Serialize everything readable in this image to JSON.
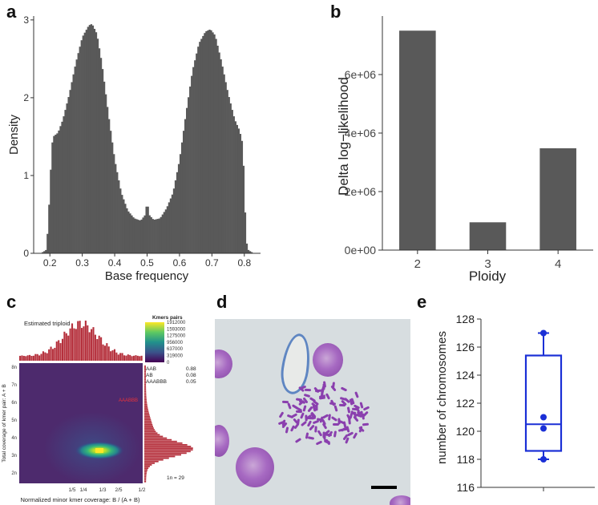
{
  "panels": {
    "a": "a",
    "b": "b",
    "c": "c",
    "d": "d",
    "e": "e"
  },
  "colors": {
    "bar": "#595959",
    "axis": "#333333",
    "hist_red": "#b5303c",
    "box_blue": "#1a2fd6"
  },
  "chart_data": [
    {
      "id": "a",
      "type": "bar",
      "title": "",
      "xlabel": "Base frequency",
      "ylabel": "Density",
      "xlim": [
        0.15,
        0.85
      ],
      "ylim": [
        0,
        3.05
      ],
      "xticks": [
        0.2,
        0.3,
        0.4,
        0.5,
        0.6,
        0.7,
        0.8
      ],
      "xtick_labels": [
        "0.2",
        "0.3",
        "0.4",
        "0.5",
        "0.6",
        "0.7",
        "0.8"
      ],
      "yticks": [
        0,
        1,
        2,
        3
      ],
      "ytick_labels": [
        "0",
        "1",
        "2",
        "3"
      ],
      "binwidth": 0.005,
      "shape_keypoints": [
        [
          0.17,
          0.0
        ],
        [
          0.18,
          0.02
        ],
        [
          0.19,
          0.05
        ],
        [
          0.195,
          0.45
        ],
        [
          0.2,
          0.8
        ],
        [
          0.205,
          1.35
        ],
        [
          0.21,
          1.5
        ],
        [
          0.225,
          1.55
        ],
        [
          0.24,
          1.72
        ],
        [
          0.26,
          2.05
        ],
        [
          0.28,
          2.45
        ],
        [
          0.3,
          2.78
        ],
        [
          0.32,
          2.93
        ],
        [
          0.33,
          2.95
        ],
        [
          0.345,
          2.82
        ],
        [
          0.36,
          2.45
        ],
        [
          0.38,
          1.8
        ],
        [
          0.4,
          1.2
        ],
        [
          0.42,
          0.78
        ],
        [
          0.44,
          0.55
        ],
        [
          0.46,
          0.45
        ],
        [
          0.48,
          0.42
        ],
        [
          0.495,
          0.5
        ],
        [
          0.5,
          0.7
        ],
        [
          0.505,
          0.5
        ],
        [
          0.52,
          0.43
        ],
        [
          0.54,
          0.45
        ],
        [
          0.56,
          0.58
        ],
        [
          0.58,
          0.78
        ],
        [
          0.6,
          1.2
        ],
        [
          0.62,
          1.8
        ],
        [
          0.64,
          2.35
        ],
        [
          0.66,
          2.7
        ],
        [
          0.68,
          2.85
        ],
        [
          0.695,
          2.88
        ],
        [
          0.71,
          2.8
        ],
        [
          0.73,
          2.45
        ],
        [
          0.75,
          2.05
        ],
        [
          0.77,
          1.72
        ],
        [
          0.785,
          1.58
        ],
        [
          0.795,
          1.4
        ],
        [
          0.8,
          0.85
        ],
        [
          0.805,
          0.2
        ],
        [
          0.81,
          0.05
        ],
        [
          0.82,
          0.02
        ],
        [
          0.83,
          0.0
        ]
      ]
    },
    {
      "id": "b",
      "type": "bar",
      "title": "",
      "xlabel": "Ploidy",
      "ylabel": "Delta log−likelihood",
      "categories": [
        "2",
        "3",
        "4"
      ],
      "values": [
        7500000,
        950000,
        3480000
      ],
      "ylim": [
        0,
        8000000
      ],
      "yticks": [
        0,
        2000000,
        4000000,
        6000000
      ],
      "ytick_labels": [
        "0e+00",
        "2e+06",
        "4e+06",
        "6e+06"
      ]
    },
    {
      "id": "c",
      "type": "heatmap",
      "title": "Estimated triploid",
      "xlabel": "Normalized minor kmer coverage: B / (A + B)",
      "ylabel": "Total coverage of kmer pair: A + B",
      "xtick_labels": [
        "1/5",
        "1/4",
        "1/3",
        "2/5",
        "1/2"
      ],
      "ytick_labels": [
        "2n",
        "3n",
        "4n",
        "5n",
        "6n",
        "7n",
        "8n"
      ],
      "annotation": "AAABBB",
      "legend": {
        "title": "Kmers pairs",
        "values": [
          "1912000",
          "1593000",
          "1275000",
          "956000",
          "637000",
          "319000",
          "0"
        ]
      },
      "proportions": [
        {
          "label": "AAB",
          "value": "0.88"
        },
        {
          "label": "AB",
          "value": "0.08"
        },
        {
          "label": "AAABBB",
          "value": "0.05"
        }
      ],
      "footnote": "1n = 29"
    },
    {
      "id": "e",
      "type": "box",
      "ylabel": "number of chromosomes",
      "ylim": [
        116,
        128
      ],
      "yticks": [
        116,
        118,
        120,
        122,
        124,
        126,
        128
      ],
      "ytick_labels": [
        "116",
        "118",
        "120",
        "122",
        "124",
        "126",
        "128"
      ],
      "min": 118,
      "q1": 118.6,
      "median": 120.5,
      "q3": 125.4,
      "max": 127,
      "points": [
        127,
        121,
        120.2,
        118
      ]
    }
  ]
}
